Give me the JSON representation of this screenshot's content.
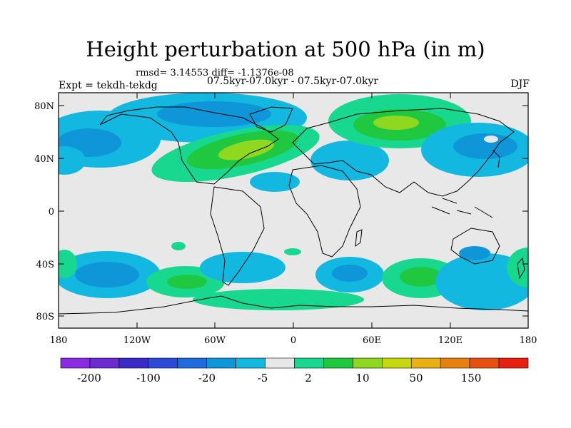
{
  "header": {
    "title": "Height perturbation at 500 hPa (in m)",
    "stats": "rmsd= 3.14553 diff= -1.1376e-08",
    "expt": "Expt = tekdh-tekdg",
    "period": "07.5kyr-07.0kyr - 07.5kyr-07.0kyr",
    "season": "DJF"
  },
  "map": {
    "lat_ticks": [
      "80N",
      "40N",
      "0",
      "40S",
      "80S"
    ],
    "lon_ticks": [
      "180",
      "120W",
      "60W",
      "0",
      "60E",
      "120E",
      "180"
    ],
    "background_color": "#e8e8e8"
  },
  "colorbar": {
    "colors": [
      "#8a2be2",
      "#6a2bd0",
      "#3a2bc8",
      "#2b4ad8",
      "#1e6be0",
      "#0f96d8",
      "#12b8e0",
      "#e8e8e8",
      "#18d890",
      "#20c840",
      "#90d820",
      "#c8d810",
      "#e8b010",
      "#e88010",
      "#e85010",
      "#e82010"
    ],
    "labels": [
      "-200",
      "-100",
      "-20",
      "-5",
      "2",
      "10",
      "50",
      "150"
    ]
  }
}
